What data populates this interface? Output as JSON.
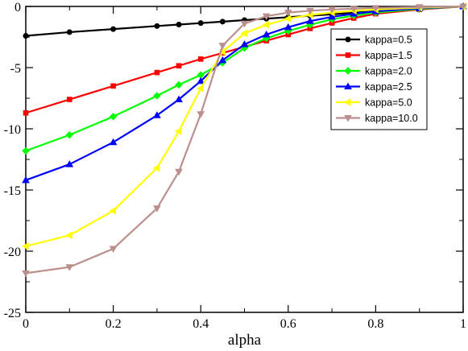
{
  "chart_data": {
    "type": "line",
    "title": "",
    "xlabel": "alpha",
    "ylabel": "",
    "xlim": [
      0,
      1
    ],
    "ylim": [
      -25,
      0
    ],
    "x_ticks": [
      0,
      0.2,
      0.4,
      0.6,
      0.8,
      1
    ],
    "x_tick_labels": [
      "0",
      "0.2",
      "0.4",
      "0.6",
      "0.8",
      "1"
    ],
    "y_ticks": [
      0,
      -5,
      -10,
      -15,
      -20,
      -25
    ],
    "y_tick_labels": [
      "0",
      "-5",
      "-10",
      "-15",
      "-20",
      "-25"
    ],
    "grid": false,
    "legend_position": "top-right",
    "series": [
      {
        "name": "kappa=0.5",
        "color": "#000000",
        "marker": "circle",
        "x": [
          0,
          0.1,
          0.2,
          0.3,
          0.35,
          0.4,
          0.45,
          0.5,
          0.55,
          0.6,
          0.65,
          0.7,
          0.75,
          0.8,
          0.9,
          1.0
        ],
        "y": [
          -2.4,
          -2.1,
          -1.85,
          -1.6,
          -1.48,
          -1.36,
          -1.24,
          -1.12,
          -1.0,
          -0.88,
          -0.76,
          -0.64,
          -0.52,
          -0.4,
          -0.2,
          0
        ]
      },
      {
        "name": "kappa=1.5",
        "color": "#ff0000",
        "marker": "square",
        "x": [
          0,
          0.1,
          0.2,
          0.3,
          0.35,
          0.4,
          0.45,
          0.5,
          0.55,
          0.6,
          0.65,
          0.7,
          0.75,
          0.8,
          0.9,
          1.0
        ],
        "y": [
          -8.7,
          -7.6,
          -6.5,
          -5.4,
          -4.85,
          -4.3,
          -3.8,
          -3.3,
          -2.8,
          -2.3,
          -1.8,
          -1.35,
          -0.95,
          -0.6,
          -0.25,
          0
        ]
      },
      {
        "name": "kappa=2.0",
        "color": "#00ff00",
        "marker": "diamond",
        "x": [
          0,
          0.1,
          0.2,
          0.3,
          0.35,
          0.4,
          0.45,
          0.5,
          0.55,
          0.6,
          0.65,
          0.7,
          0.75,
          0.8,
          0.9,
          1.0
        ],
        "y": [
          -11.8,
          -10.5,
          -9.0,
          -7.3,
          -6.4,
          -5.6,
          -4.6,
          -3.4,
          -2.6,
          -2.0,
          -1.5,
          -1.05,
          -0.75,
          -0.5,
          -0.2,
          0
        ]
      },
      {
        "name": "kappa=2.5",
        "color": "#0000ff",
        "marker": "triangle-up",
        "x": [
          0,
          0.1,
          0.2,
          0.3,
          0.35,
          0.4,
          0.45,
          0.5,
          0.55,
          0.6,
          0.65,
          0.7,
          0.75,
          0.8,
          0.9,
          1.0
        ],
        "y": [
          -14.2,
          -12.9,
          -11.1,
          -8.9,
          -7.6,
          -6.1,
          -4.4,
          -3.1,
          -2.3,
          -1.7,
          -1.2,
          -0.85,
          -0.6,
          -0.4,
          -0.15,
          0
        ]
      },
      {
        "name": "kappa=5.0",
        "color": "#ffff00",
        "marker": "triangle-left",
        "x": [
          0,
          0.1,
          0.2,
          0.3,
          0.35,
          0.4,
          0.45,
          0.5,
          0.55,
          0.6,
          0.65,
          0.7,
          0.75,
          0.8,
          0.9,
          1.0
        ],
        "y": [
          -19.6,
          -18.7,
          -16.7,
          -13.2,
          -10.2,
          -6.7,
          -3.7,
          -2.2,
          -1.5,
          -1.0,
          -0.7,
          -0.5,
          -0.35,
          -0.25,
          -0.1,
          0
        ]
      },
      {
        "name": "kappa=10.0",
        "color": "#bc8f8f",
        "marker": "triangle-down",
        "x": [
          0,
          0.1,
          0.2,
          0.3,
          0.35,
          0.4,
          0.45,
          0.5,
          0.55,
          0.6,
          0.65,
          0.7,
          0.75,
          0.8,
          0.9,
          1.0
        ],
        "y": [
          -21.8,
          -21.3,
          -19.8,
          -16.5,
          -13.5,
          -8.8,
          -3.2,
          -1.4,
          -0.8,
          -0.5,
          -0.35,
          -0.25,
          -0.18,
          -0.12,
          -0.05,
          0
        ]
      }
    ]
  }
}
